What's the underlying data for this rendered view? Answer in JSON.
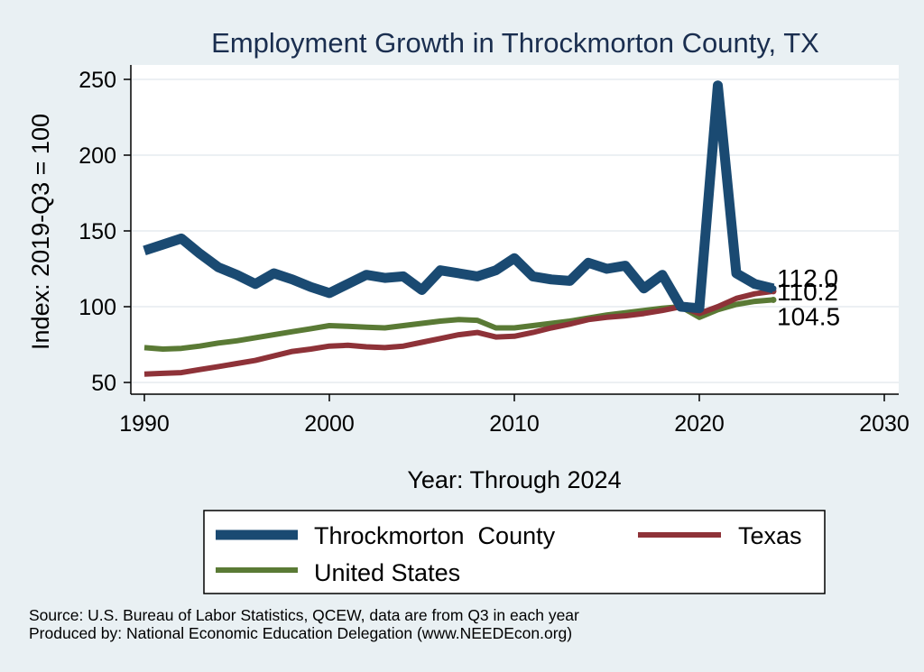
{
  "chart_data": {
    "type": "line",
    "title": "Employment Growth in Throckmorton County, TX",
    "xlabel": "Year: Through 2024",
    "ylabel": "Index: 2019-Q3 = 100",
    "xlim": [
      1990,
      2030
    ],
    "ylim": [
      45,
      260
    ],
    "xticks": [
      1990,
      2000,
      2010,
      2020,
      2030
    ],
    "yticks": [
      50,
      100,
      150,
      200,
      250
    ],
    "grid": true,
    "legend_position": "bottom",
    "x": [
      1990,
      1991,
      1992,
      1993,
      1994,
      1995,
      1996,
      1997,
      1998,
      1999,
      2000,
      2001,
      2002,
      2003,
      2004,
      2005,
      2006,
      2007,
      2008,
      2009,
      2010,
      2011,
      2012,
      2013,
      2014,
      2015,
      2016,
      2017,
      2018,
      2019,
      2020,
      2021,
      2022,
      2023,
      2024
    ],
    "series": [
      {
        "name": "Throckmorton  County",
        "color": "#1a4a72",
        "values": [
          137,
          141,
          145,
          135,
          126,
          121,
          115,
          122,
          118,
          113,
          109,
          115,
          121,
          119,
          120,
          111,
          124,
          122,
          120,
          124,
          132,
          120,
          118,
          117,
          129,
          125,
          127,
          112,
          121,
          100,
          99,
          246,
          122,
          115,
          112.0
        ],
        "end_label": "112.0"
      },
      {
        "name": "Texas",
        "color": "#8e3238",
        "values": [
          55.5,
          56,
          56.5,
          58.5,
          60.5,
          62.5,
          64.5,
          67.5,
          70.5,
          72,
          74,
          74.5,
          73.5,
          73,
          74,
          76.5,
          79,
          81.5,
          83,
          80,
          80.5,
          83,
          86,
          88.5,
          91.5,
          93,
          94,
          95.5,
          97.5,
          100,
          95.5,
          100,
          105.5,
          108.5,
          110.2
        ],
        "end_label": "110.2"
      },
      {
        "name": "United States",
        "color": "#5a7a35",
        "values": [
          73,
          72,
          72.5,
          74,
          76,
          77.5,
          79.5,
          81.5,
          83.5,
          85.5,
          87.5,
          87,
          86.5,
          86,
          87.5,
          89,
          90.5,
          91.5,
          91,
          86,
          86,
          87.5,
          89,
          90.5,
          92.5,
          94.5,
          96,
          97.5,
          99,
          100,
          93,
          98,
          101.5,
          103.5,
          104.5
        ],
        "end_label": "104.5"
      }
    ]
  },
  "footer": {
    "source": "Source: U.S. Bureau of Labor Statistics, QCEW, data are from Q3 in each year",
    "produced_by": "Produced by: National Economic Education Delegation (www.NEEDEcon.org)"
  }
}
